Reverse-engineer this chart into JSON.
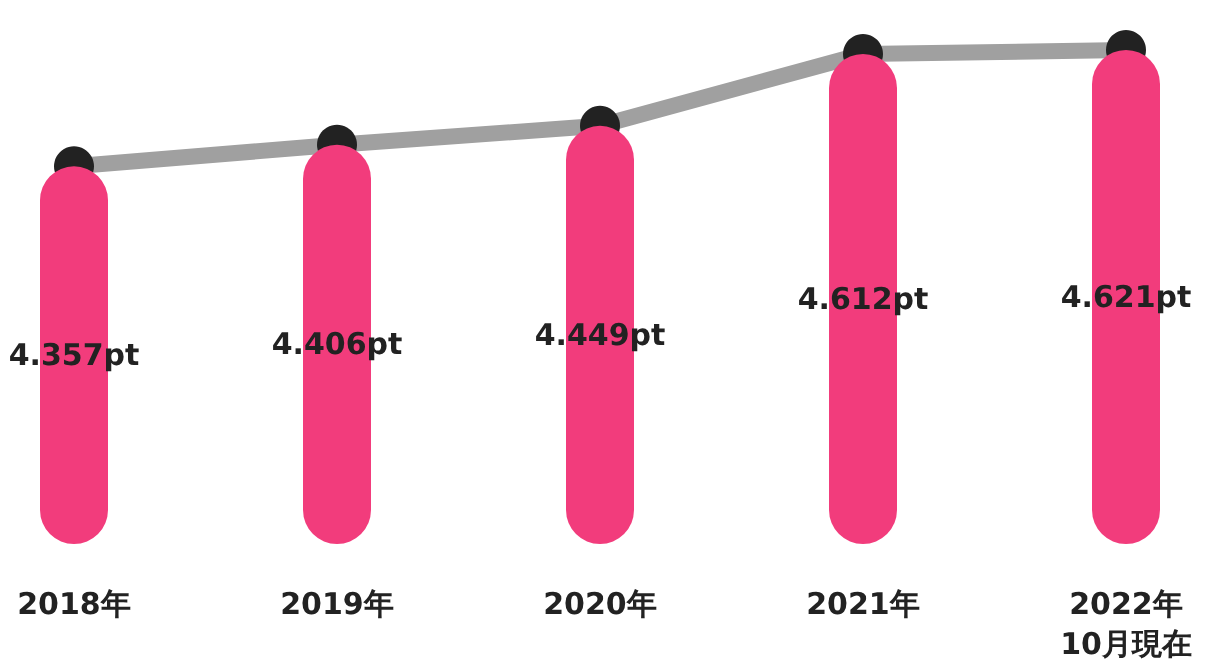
{
  "chart_data": {
    "type": "bar",
    "categories": [
      "2018年",
      "2019年",
      "2020年",
      "2021年",
      "2022年\n10月現在"
    ],
    "ylim": [
      3.5,
      4.621
    ],
    "tick_labels": "x",
    "series": [
      {
        "color": "#f23c7c",
        "values": [
          4.357,
          4.406,
          4.449,
          4.612,
          4.621
        ],
        "value_labels": [
          "4.357pt",
          "4.406pt",
          "4.449pt",
          "4.612pt",
          "4.621pt"
        ]
      },
      {
        "type": "line",
        "color": "#a0a0a0",
        "values": [
          4.357,
          4.406,
          4.449,
          4.612,
          4.621
        ],
        "marker": "circle"
      }
    ]
  }
}
